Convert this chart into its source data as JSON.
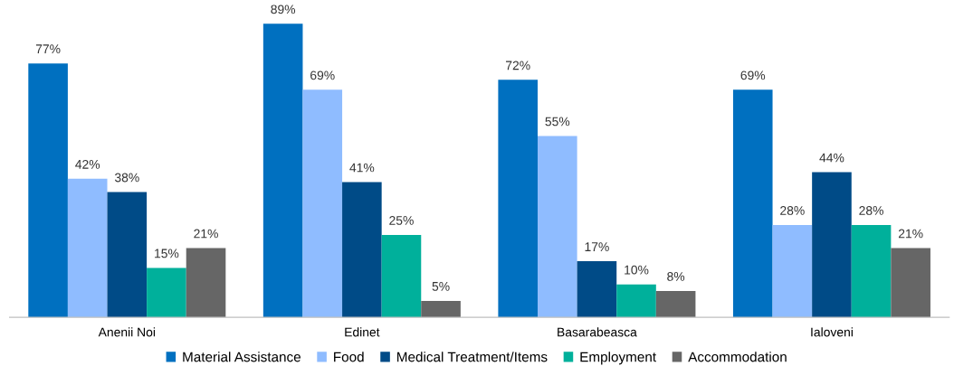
{
  "chart_data": {
    "type": "bar",
    "categories": [
      "Anenii Noi",
      "Edinet",
      "Basarabeasca",
      "Ialoveni"
    ],
    "series": [
      {
        "name": "Material Assistance",
        "color": "#0070c0",
        "values": [
          77,
          89,
          72,
          69
        ],
        "value_labels": [
          "77%",
          "89%",
          "72%",
          "69%"
        ]
      },
      {
        "name": "Food",
        "color": "#8fbcff",
        "values": [
          42,
          69,
          55,
          28
        ],
        "value_labels": [
          "42%",
          "69%",
          "55%",
          "28%"
        ]
      },
      {
        "name": "Medical Treatment/Items",
        "color": "#004b87",
        "values": [
          38,
          41,
          17,
          44
        ],
        "value_labels": [
          "38%",
          "41%",
          "17%",
          "44%"
        ]
      },
      {
        "name": "Employment",
        "color": "#00b09b",
        "values": [
          15,
          25,
          10,
          28
        ],
        "value_labels": [
          "15%",
          "25%",
          "10%",
          "28%"
        ]
      },
      {
        "name": "Accommodation",
        "color": "#666666",
        "values": [
          21,
          5,
          8,
          21
        ],
        "value_labels": [
          "21%",
          "5%",
          "8%",
          "21%"
        ]
      }
    ],
    "legend": "bottom",
    "grid": false
  }
}
